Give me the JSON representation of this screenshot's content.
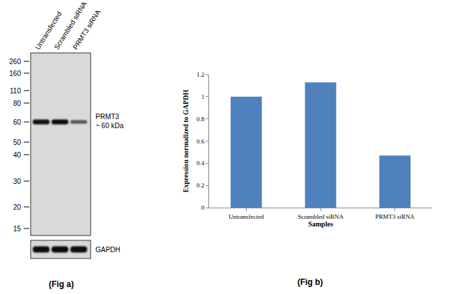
{
  "chart_data": {
    "type": "bar",
    "categories": [
      "Untransfected",
      "Scrambled siRNA",
      "PRMT3 siRNA"
    ],
    "values": [
      1,
      1.13,
      0.47
    ],
    "color": "#4f81bd",
    "ylim": [
      0,
      1.2
    ],
    "yticks": [
      0,
      0.2,
      0.4,
      0.6,
      0.8,
      1,
      1.2
    ],
    "grid": false,
    "x_label": "Samples",
    "y_label": "Expression normalized to GAPDH",
    "caption": "(Fig b)"
  },
  "blot": {
    "lanes": [
      "Untransfected",
      "Scrambled siRNA",
      "PRMT3 siRNA"
    ],
    "markers": [
      260,
      160,
      110,
      80,
      60,
      50,
      40,
      30,
      20,
      15
    ],
    "target_label": "PRMT3",
    "size_label": "~ 60 kDa",
    "loading_control": "GAPDH",
    "target_intensity": [
      1,
      1.05,
      0.5
    ],
    "control_intensity": [
      1,
      1,
      1
    ],
    "caption": "(Fig a)"
  }
}
